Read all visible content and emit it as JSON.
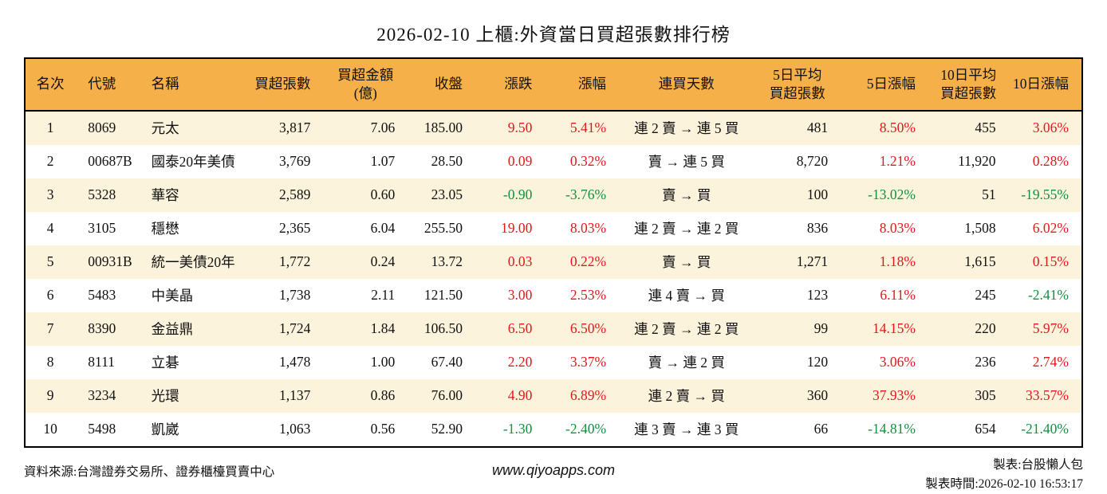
{
  "title": "2026-02-10 上櫃:外資當日買超張數排行榜",
  "colors": {
    "header_bg": "#f6b04a",
    "stripe_bg": "#fcf3dc",
    "up": "#dd1a1a",
    "down": "#12903e",
    "border": "#000000"
  },
  "table": {
    "columns": [
      {
        "key": "rank",
        "label": "名次"
      },
      {
        "key": "code",
        "label": "代號"
      },
      {
        "key": "name",
        "label": "名稱"
      },
      {
        "key": "net-buy-volume",
        "label": "買超張數"
      },
      {
        "key": "net-buy-amount",
        "label": "買超金額\n(億)"
      },
      {
        "key": "close",
        "label": "收盤"
      },
      {
        "key": "change",
        "label": "漲跌"
      },
      {
        "key": "change-pct",
        "label": "漲幅"
      },
      {
        "key": "streak",
        "label": "連買天數"
      },
      {
        "key": "avg5-volume",
        "label": "5日平均\n買超張數"
      },
      {
        "key": "pct5",
        "label": "5日漲幅"
      },
      {
        "key": "avg10-volume",
        "label": "10日平均\n買超張數"
      },
      {
        "key": "pct10",
        "label": "10日漲幅"
      }
    ],
    "rows": [
      [
        "1",
        "8069",
        "元太",
        "3,817",
        "7.06",
        "185.00",
        "9.50",
        "5.41%",
        "連 2 賣 → 連 5 買",
        "481",
        "8.50%",
        "455",
        "3.06%"
      ],
      [
        "2",
        "00687B",
        "國泰20年美債",
        "3,769",
        "1.07",
        "28.50",
        "0.09",
        "0.32%",
        "賣 → 連 5 買",
        "8,720",
        "1.21%",
        "11,920",
        "0.28%"
      ],
      [
        "3",
        "5328",
        "華容",
        "2,589",
        "0.60",
        "23.05",
        "-0.90",
        "-3.76%",
        "賣 → 買",
        "100",
        "-13.02%",
        "51",
        "-19.55%"
      ],
      [
        "4",
        "3105",
        "穩懋",
        "2,365",
        "6.04",
        "255.50",
        "19.00",
        "8.03%",
        "連 2 賣 → 連 2 買",
        "836",
        "8.03%",
        "1,508",
        "6.02%"
      ],
      [
        "5",
        "00931B",
        "統一美債20年",
        "1,772",
        "0.24",
        "13.72",
        "0.03",
        "0.22%",
        "賣 → 買",
        "1,271",
        "1.18%",
        "1,615",
        "0.15%"
      ],
      [
        "6",
        "5483",
        "中美晶",
        "1,738",
        "2.11",
        "121.50",
        "3.00",
        "2.53%",
        "連 4 賣 → 買",
        "123",
        "6.11%",
        "245",
        "-2.41%"
      ],
      [
        "7",
        "8390",
        "金益鼎",
        "1,724",
        "1.84",
        "106.50",
        "6.50",
        "6.50%",
        "連 2 賣 → 連 2 買",
        "99",
        "14.15%",
        "220",
        "5.97%"
      ],
      [
        "8",
        "8111",
        "立碁",
        "1,478",
        "1.00",
        "67.40",
        "2.20",
        "3.37%",
        "賣 → 連 2 買",
        "120",
        "3.06%",
        "236",
        "2.74%"
      ],
      [
        "9",
        "3234",
        "光環",
        "1,137",
        "0.86",
        "76.00",
        "4.90",
        "6.89%",
        "連 2 賣 → 買",
        "360",
        "37.93%",
        "305",
        "33.57%"
      ],
      [
        "10",
        "5498",
        "凱崴",
        "1,063",
        "0.56",
        "52.90",
        "-1.30",
        "-2.40%",
        "連 3 賣 → 連 3 買",
        "66",
        "-14.81%",
        "654",
        "-21.40%"
      ]
    ]
  },
  "footer": {
    "source": "資料來源:台灣證券交易所、證券櫃檯買賣中心",
    "website": "www.qiyoapps.com",
    "maker": "製表:台股懶人包",
    "made_at": "製表時間:2026-02-10 16:53:17"
  }
}
